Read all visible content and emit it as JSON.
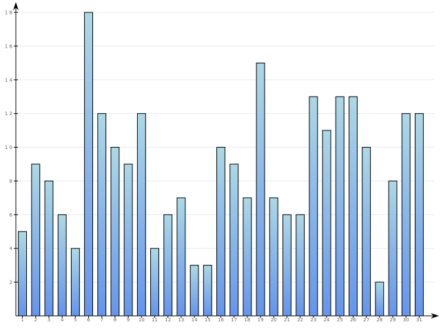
{
  "chart_data": {
    "type": "bar",
    "title": "",
    "xlabel": "",
    "ylabel": "",
    "categories": [
      "1",
      "2",
      "3",
      "4",
      "5",
      "6",
      "7",
      "8",
      "9",
      "10",
      "11",
      "12",
      "13",
      "14",
      "15",
      "16",
      "17",
      "18",
      "19",
      "20",
      "21",
      "22",
      "23",
      "24",
      "25",
      "26",
      "27",
      "28",
      "29",
      "30",
      "31"
    ],
    "values": [
      5,
      9,
      8,
      6,
      4,
      18,
      12,
      10,
      9,
      12,
      4,
      6,
      7,
      3,
      3,
      10,
      9,
      7,
      15,
      7,
      6,
      6,
      13,
      11,
      13,
      13,
      10,
      2,
      8,
      12,
      12
    ],
    "ylim": [
      0,
      18
    ],
    "yticks": [
      2,
      4,
      6,
      8,
      10,
      12,
      14,
      16,
      18
    ],
    "ytick_labels": [
      "2",
      "4",
      "6",
      "8",
      "1 0",
      "1 2",
      "1 4",
      "1 6",
      "1 8"
    ],
    "grid": true,
    "legend": "none",
    "colors": {
      "bar_top": "#add8e6",
      "bar_bottom": "#6495ed",
      "axis": "#000000",
      "grid": "#dddddd"
    }
  }
}
